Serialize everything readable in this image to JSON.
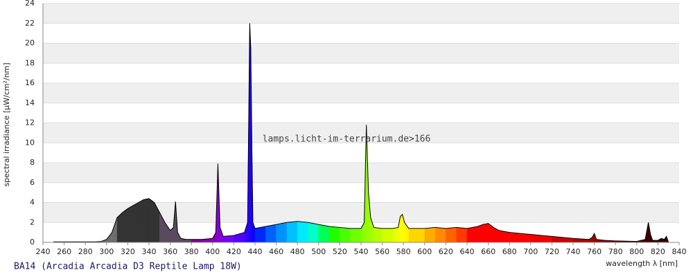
{
  "chart_data": {
    "type": "spectrum",
    "ylabel": "spectral irradiance [µW/cm²/nm]",
    "xlabel": "wavelength λ [nm]",
    "watermark": "lamps.licht-im-terrarium.de>166",
    "caption": "BA14 (Arcadia Arcadia D3 Reptile Lamp 18W)",
    "xlim": [
      240,
      840
    ],
    "ylim": [
      0,
      24
    ],
    "xticks": [
      240,
      260,
      280,
      300,
      320,
      340,
      360,
      380,
      400,
      420,
      440,
      460,
      480,
      500,
      520,
      540,
      560,
      580,
      600,
      620,
      640,
      660,
      680,
      700,
      720,
      740,
      760,
      780,
      800,
      820,
      840
    ],
    "yticks": [
      0,
      2,
      4,
      6,
      8,
      10,
      12,
      14,
      16,
      18,
      20,
      22,
      24
    ],
    "grid": "bands",
    "x": [
      250,
      260,
      270,
      280,
      290,
      295,
      300,
      305,
      310,
      315,
      320,
      325,
      330,
      335,
      340,
      345,
      350,
      355,
      360,
      363,
      365,
      367,
      370,
      375,
      380,
      390,
      400,
      403,
      405,
      407,
      410,
      420,
      430,
      433,
      435,
      436,
      437,
      438,
      440,
      450,
      460,
      470,
      480,
      490,
      500,
      510,
      520,
      530,
      540,
      543,
      545,
      547,
      549,
      552,
      560,
      570,
      575,
      577,
      579,
      581,
      585,
      600,
      610,
      620,
      630,
      640,
      650,
      655,
      660,
      665,
      670,
      680,
      700,
      720,
      740,
      755,
      758,
      760,
      762,
      770,
      780,
      800,
      808,
      811,
      813,
      815,
      820,
      823,
      826,
      828,
      830
    ],
    "values": [
      0.05,
      0.05,
      0.05,
      0.05,
      0.05,
      0.1,
      0.3,
      1.0,
      2.5,
      3.0,
      3.4,
      3.7,
      4.0,
      4.3,
      4.4,
      4.0,
      3.0,
      2.0,
      1.2,
      1.5,
      4.1,
      1.0,
      0.4,
      0.3,
      0.3,
      0.3,
      0.4,
      1.0,
      7.9,
      1.5,
      0.6,
      0.7,
      1.0,
      2.0,
      22.0,
      19.5,
      10.0,
      2.0,
      1.4,
      1.6,
      1.8,
      2.0,
      2.1,
      2.0,
      1.8,
      1.6,
      1.5,
      1.4,
      1.4,
      2.0,
      11.8,
      5.0,
      2.5,
      1.5,
      1.4,
      1.4,
      1.5,
      2.6,
      2.8,
      2.0,
      1.4,
      1.4,
      1.5,
      1.4,
      1.5,
      1.4,
      1.6,
      1.8,
      1.9,
      1.5,
      1.2,
      1.0,
      0.8,
      0.6,
      0.4,
      0.3,
      0.5,
      0.9,
      0.3,
      0.2,
      0.15,
      0.1,
      0.3,
      2.0,
      0.8,
      0.2,
      0.2,
      0.4,
      0.3,
      0.6,
      0.0
    ]
  }
}
